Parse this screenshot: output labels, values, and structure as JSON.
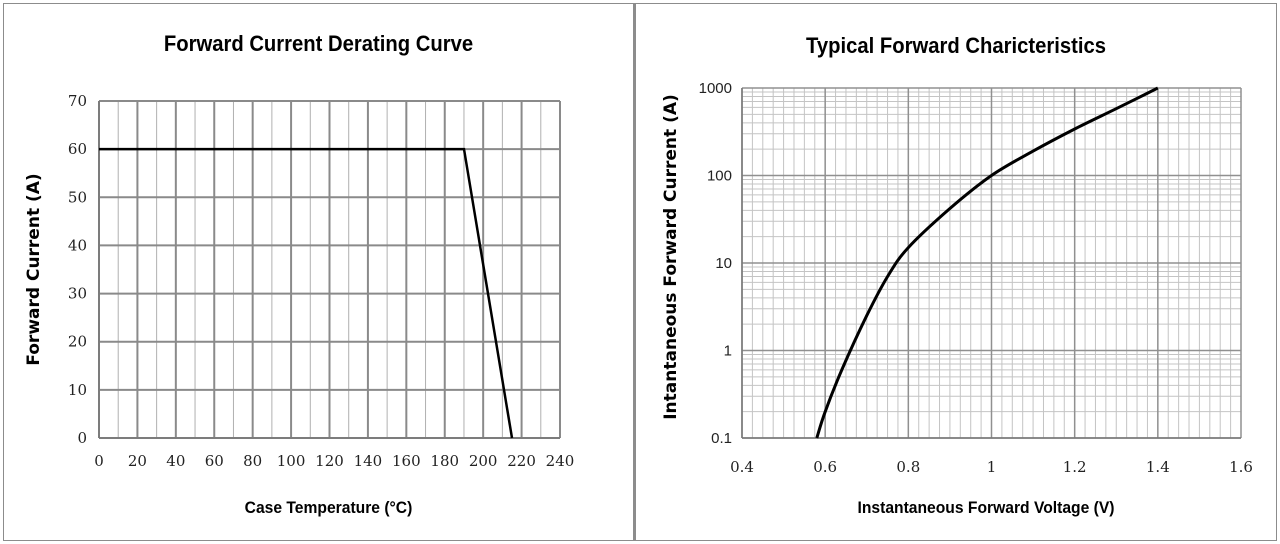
{
  "chart_data": [
    {
      "type": "line",
      "title": "Forward Current Derating Curve",
      "xlabel": "Case Temperature (°C)",
      "ylabel": "Forward Current (A)",
      "xlim": [
        0,
        240
      ],
      "ylim": [
        0,
        70
      ],
      "xticks": [
        "0",
        "20",
        "40",
        "60",
        "80",
        "100",
        "120",
        "140",
        "160",
        "180",
        "200",
        "220",
        "240"
      ],
      "yticks": [
        "0",
        "10",
        "20",
        "30",
        "40",
        "50",
        "60",
        "70"
      ],
      "grid": true,
      "series": [
        {
          "values": [
            [
              0,
              60
            ],
            [
              190,
              60
            ],
            [
              215,
              0
            ]
          ]
        }
      ]
    },
    {
      "type": "line",
      "title": "Typical Forward Charicteristics",
      "xlabel": "Instantaneous Forward Voltage (V)",
      "ylabel": "Intantaneous Forward Current (A)",
      "xlim": [
        0.4,
        1.6
      ],
      "ylim": [
        0.1,
        1000
      ],
      "yscale": "log",
      "xticks": [
        "0.4",
        "0.6",
        "0.8",
        "1",
        "1.2",
        "1.4",
        "1.6"
      ],
      "yticks": [
        "0.1",
        "1",
        "10",
        "100",
        "1000"
      ],
      "grid": true,
      "series": [
        {
          "values": [
            [
              0.58,
              0.1
            ],
            [
              0.6,
              0.2
            ],
            [
              0.64,
              0.6
            ],
            [
              0.7,
              2.5
            ],
            [
              0.75,
              7
            ],
            [
              0.8,
              15
            ],
            [
              0.9,
              42
            ],
            [
              1.0,
              100
            ],
            [
              1.1,
              190
            ],
            [
              1.2,
              340
            ],
            [
              1.3,
              580
            ],
            [
              1.4,
              1000
            ]
          ]
        }
      ]
    }
  ]
}
